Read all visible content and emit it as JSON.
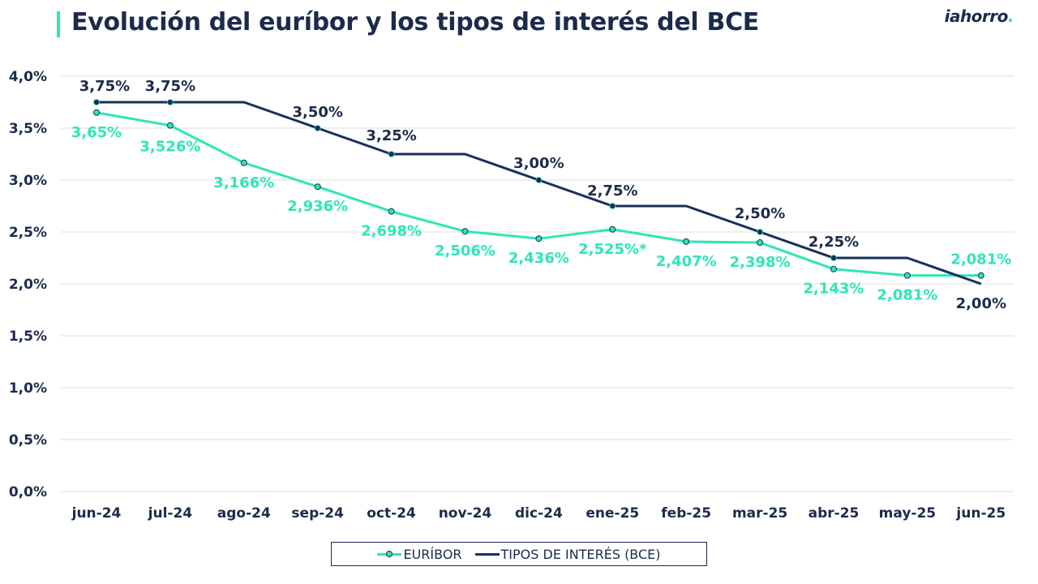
{
  "header": {
    "title": "Evolución del euríbor y los tipos de interés del BCE",
    "logo_text": "iahorro",
    "logo_dot": "."
  },
  "colors": {
    "euribor": "#2ee6b6",
    "bce": "#16305a",
    "text_dark": "#1b2b4b",
    "grid": "#dcdcdc"
  },
  "chart_data": {
    "type": "line",
    "title": "Evolución del euríbor y los tipos de interés del BCE",
    "categories": [
      "jun-24",
      "jul-24",
      "ago-24",
      "sep-24",
      "oct-24",
      "nov-24",
      "dic-24",
      "ene-25",
      "feb-25",
      "mar-25",
      "abr-25",
      "may-25",
      "jun-25"
    ],
    "y_ticks": [
      "0,0%",
      "0,5%",
      "1,0%",
      "1,5%",
      "2,0%",
      "2,5%",
      "3,0%",
      "3,5%",
      "4,0%"
    ],
    "ylim": [
      0,
      4
    ],
    "grid": true,
    "legend_position": "bottom",
    "series": [
      {
        "name": "EURÍBOR",
        "values": [
          3.65,
          3.526,
          3.166,
          2.936,
          2.698,
          2.506,
          2.436,
          2.525,
          2.407,
          2.398,
          2.143,
          2.081,
          2.081
        ],
        "labels": [
          "3,65%",
          "3,526%",
          "3,166%",
          "2,936%",
          "2,698%",
          "2,506%",
          "2,436%",
          "2,525%*",
          "2,407%",
          "2,398%",
          "2,143%",
          "2,081%",
          "2,081%"
        ],
        "markers": [
          true,
          true,
          true,
          true,
          true,
          true,
          true,
          true,
          true,
          true,
          true,
          true,
          true
        ]
      },
      {
        "name": "TIPOS DE INTERÉS (BCE)",
        "values": [
          3.75,
          3.75,
          3.75,
          3.5,
          3.25,
          3.25,
          3.0,
          2.75,
          2.75,
          2.5,
          2.25,
          2.25,
          2.0
        ],
        "labels": [
          "3,75%",
          "3,75%",
          "",
          "3,50%",
          "3,25%",
          "",
          "3,00%",
          "2,75%",
          "",
          "2,50%",
          "2,25%",
          "",
          "2,00%"
        ],
        "markers": [
          true,
          true,
          false,
          true,
          true,
          false,
          true,
          true,
          false,
          true,
          true,
          false,
          false
        ]
      }
    ]
  },
  "legend": {
    "euribor_label": "EURÍBOR",
    "bce_label": "TIPOS DE INTERÉS (BCE)"
  }
}
